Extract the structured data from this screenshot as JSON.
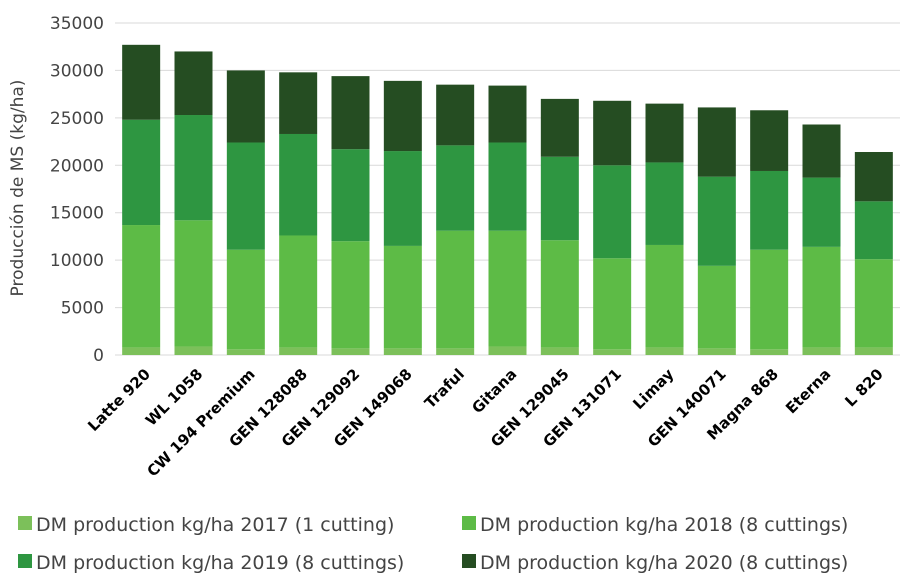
{
  "chart_data": {
    "type": "bar",
    "stacked": true,
    "title": "",
    "xlabel": "",
    "ylabel": "Producción de MS (kg/ha)",
    "ylim": [
      0,
      35000
    ],
    "yticks": [
      0,
      5000,
      10000,
      15000,
      20000,
      25000,
      30000,
      35000
    ],
    "grid": true,
    "legend_position": "bottom",
    "categories": [
      "Latte 920",
      "WL 1058",
      "CW 194 Premium",
      "GEN 128088",
      "GEN 129092",
      "GEN 149068",
      "Traful",
      "Gitana",
      "GEN 129045",
      "GEN 131071",
      "Limay",
      "GEN 140071",
      "Magna 868",
      "Eterna",
      "L 820"
    ],
    "series": [
      {
        "name": "DM production kg/ha 2017 (1 cutting)",
        "color": "#7cc05a",
        "values": [
          800,
          900,
          600,
          800,
          700,
          700,
          700,
          900,
          800,
          600,
          800,
          700,
          600,
          800,
          800
        ]
      },
      {
        "name": "DM production kg/ha 2018 (8 cuttings)",
        "color": "#5dbb46",
        "values": [
          12900,
          13300,
          10500,
          11800,
          11300,
          10800,
          12400,
          12200,
          11300,
          9600,
          10800,
          8700,
          10500,
          10600,
          9300
        ]
      },
      {
        "name": "DM production kg/ha 2019 (8 cuttings)",
        "color": "#2e9641",
        "values": [
          11100,
          11100,
          11300,
          10700,
          9700,
          10000,
          9000,
          9300,
          8800,
          9800,
          8700,
          9400,
          8300,
          7300,
          6100
        ]
      },
      {
        "name": "DM production kg/ha 2020 (8 cuttings)",
        "color": "#254d22",
        "values": [
          7900,
          6700,
          7600,
          6500,
          7700,
          7400,
          6400,
          6000,
          6100,
          6800,
          6200,
          7300,
          6400,
          5600,
          5200
        ]
      }
    ]
  }
}
